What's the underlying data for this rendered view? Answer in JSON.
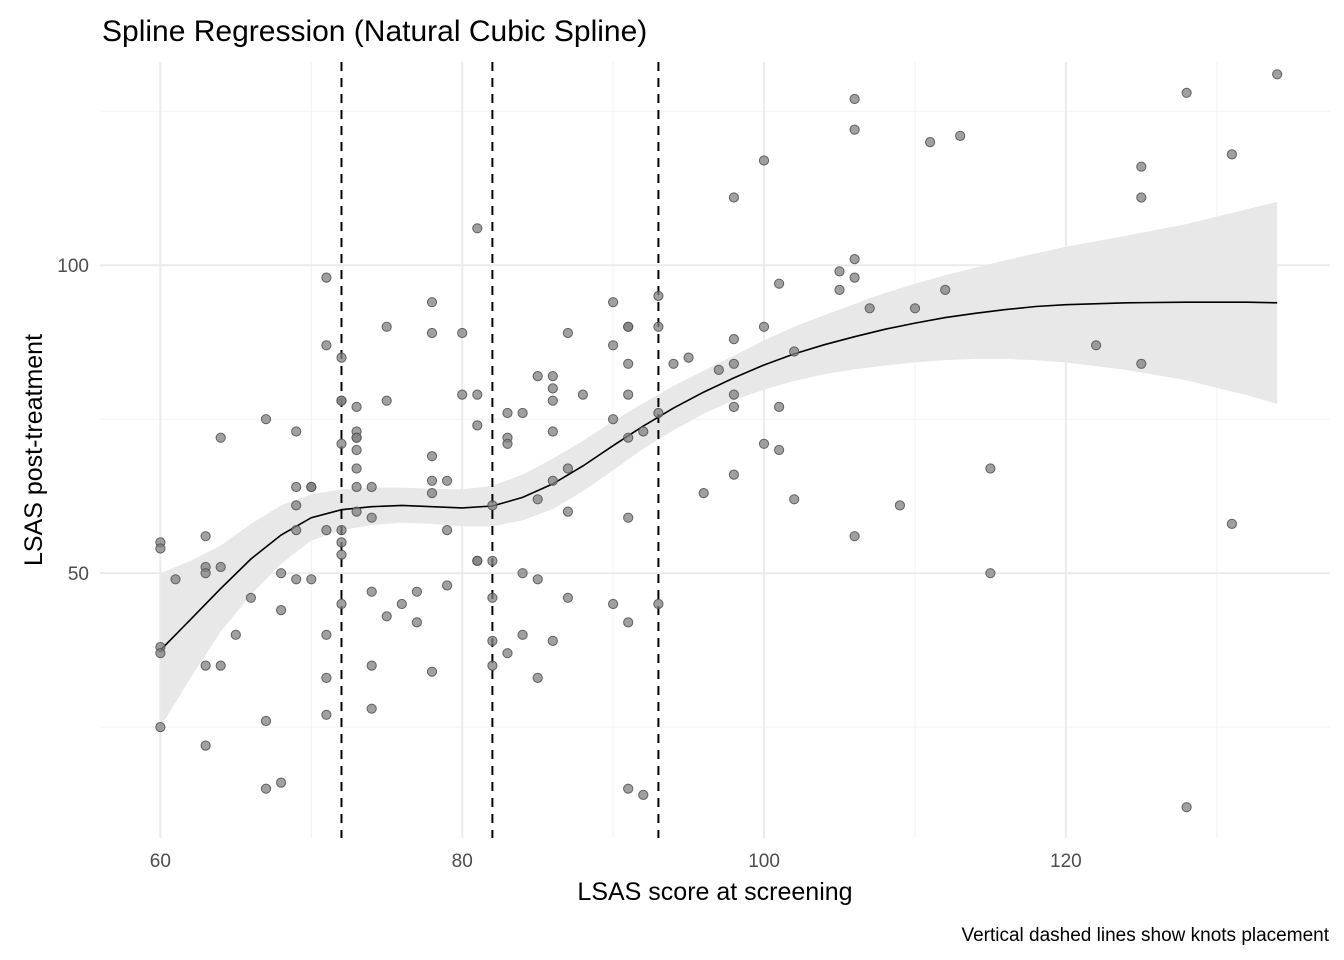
{
  "chart_data": {
    "type": "scatter",
    "title": "Spline Regression (Natural Cubic Spline)",
    "xlabel": "LSAS score at screening",
    "ylabel": "LSAS post-treatment",
    "caption": "Vertical dashed lines show knots placement",
    "xlim": [
      56,
      137.5
    ],
    "ylim": [
      7,
      133
    ],
    "x_ticks": [
      60,
      80,
      100,
      120
    ],
    "x_tick_labels": [
      "60",
      "80",
      "100",
      "120"
    ],
    "x_minor_ticks": [
      70,
      90,
      110,
      130
    ],
    "y_ticks": [
      50,
      100
    ],
    "y_tick_labels": [
      "50",
      "100"
    ],
    "y_minor_ticks": [
      25,
      75,
      125
    ],
    "grid": true,
    "knots": [
      72,
      82,
      93
    ],
    "colors": {
      "point_fill": "#808080",
      "point_stroke": "#4d4d4d",
      "ribbon": "#e8e8e8",
      "line": "#000000",
      "grid_major": "#ebebeb",
      "grid_minor": "#f2f2f2"
    },
    "points": [
      [
        60,
        55
      ],
      [
        60,
        54
      ],
      [
        60,
        38
      ],
      [
        60,
        37
      ],
      [
        60,
        25
      ],
      [
        61,
        49
      ],
      [
        63,
        56
      ],
      [
        63,
        51
      ],
      [
        63,
        50
      ],
      [
        63,
        35
      ],
      [
        63,
        22
      ],
      [
        64,
        72
      ],
      [
        64,
        51
      ],
      [
        64,
        35
      ],
      [
        65,
        40
      ],
      [
        66,
        46
      ],
      [
        67,
        75
      ],
      [
        67,
        26
      ],
      [
        67,
        15
      ],
      [
        68,
        50
      ],
      [
        68,
        44
      ],
      [
        68,
        16
      ],
      [
        69,
        73
      ],
      [
        69,
        64
      ],
      [
        69,
        61
      ],
      [
        69,
        57
      ],
      [
        69,
        49
      ],
      [
        70,
        64
      ],
      [
        70,
        64
      ],
      [
        70,
        49
      ],
      [
        71,
        98
      ],
      [
        71,
        87
      ],
      [
        71,
        57
      ],
      [
        71,
        40
      ],
      [
        71,
        33
      ],
      [
        71,
        27
      ],
      [
        72,
        85
      ],
      [
        72,
        78
      ],
      [
        72,
        78
      ],
      [
        72,
        71
      ],
      [
        72,
        57
      ],
      [
        72,
        55
      ],
      [
        72,
        53
      ],
      [
        72,
        45
      ],
      [
        73,
        77
      ],
      [
        73,
        73
      ],
      [
        73,
        72
      ],
      [
        73,
        72
      ],
      [
        73,
        70
      ],
      [
        73,
        67
      ],
      [
        73,
        64
      ],
      [
        73,
        60
      ],
      [
        74,
        64
      ],
      [
        74,
        59
      ],
      [
        74,
        47
      ],
      [
        74,
        35
      ],
      [
        74,
        28
      ],
      [
        75,
        90
      ],
      [
        75,
        78
      ],
      [
        75,
        43
      ],
      [
        76,
        45
      ],
      [
        77,
        47
      ],
      [
        77,
        42
      ],
      [
        78,
        94
      ],
      [
        78,
        89
      ],
      [
        78,
        69
      ],
      [
        78,
        65
      ],
      [
        78,
        63
      ],
      [
        78,
        34
      ],
      [
        79,
        65
      ],
      [
        79,
        57
      ],
      [
        79,
        48
      ],
      [
        80,
        89
      ],
      [
        80,
        79
      ],
      [
        81,
        106
      ],
      [
        81,
        79
      ],
      [
        81,
        74
      ],
      [
        81,
        52
      ],
      [
        81,
        52
      ],
      [
        82,
        61
      ],
      [
        82,
        52
      ],
      [
        82,
        46
      ],
      [
        82,
        39
      ],
      [
        82,
        35
      ],
      [
        83,
        76
      ],
      [
        83,
        72
      ],
      [
        83,
        71
      ],
      [
        83,
        37
      ],
      [
        84,
        76
      ],
      [
        84,
        50
      ],
      [
        84,
        40
      ],
      [
        85,
        82
      ],
      [
        85,
        62
      ],
      [
        85,
        49
      ],
      [
        85,
        33
      ],
      [
        86,
        82
      ],
      [
        86,
        80
      ],
      [
        86,
        78
      ],
      [
        86,
        73
      ],
      [
        86,
        65
      ],
      [
        86,
        39
      ],
      [
        87,
        89
      ],
      [
        87,
        67
      ],
      [
        87,
        60
      ],
      [
        87,
        46
      ],
      [
        88,
        79
      ],
      [
        90,
        94
      ],
      [
        90,
        87
      ],
      [
        90,
        75
      ],
      [
        90,
        45
      ],
      [
        91,
        90
      ],
      [
        91,
        90
      ],
      [
        91,
        84
      ],
      [
        91,
        79
      ],
      [
        91,
        72
      ],
      [
        91,
        59
      ],
      [
        91,
        42
      ],
      [
        91,
        15
      ],
      [
        92,
        73
      ],
      [
        92,
        14
      ],
      [
        93,
        95
      ],
      [
        93,
        90
      ],
      [
        93,
        76
      ],
      [
        93,
        45
      ],
      [
        94,
        84
      ],
      [
        95,
        85
      ],
      [
        96,
        63
      ],
      [
        97,
        83
      ],
      [
        98,
        111
      ],
      [
        98,
        88
      ],
      [
        98,
        84
      ],
      [
        98,
        79
      ],
      [
        98,
        77
      ],
      [
        98,
        66
      ],
      [
        100,
        117
      ],
      [
        100,
        90
      ],
      [
        100,
        71
      ],
      [
        101,
        97
      ],
      [
        101,
        77
      ],
      [
        101,
        70
      ],
      [
        102,
        86
      ],
      [
        102,
        62
      ],
      [
        105,
        99
      ],
      [
        105,
        96
      ],
      [
        106,
        127
      ],
      [
        106,
        122
      ],
      [
        106,
        101
      ],
      [
        106,
        98
      ],
      [
        106,
        56
      ],
      [
        107,
        93
      ],
      [
        109,
        61
      ],
      [
        110,
        93
      ],
      [
        111,
        120
      ],
      [
        112,
        96
      ],
      [
        113,
        121
      ],
      [
        115,
        67
      ],
      [
        115,
        50
      ],
      [
        122,
        87
      ],
      [
        125,
        116
      ],
      [
        125,
        111
      ],
      [
        125,
        84
      ],
      [
        128,
        128
      ],
      [
        128,
        12
      ],
      [
        131,
        118
      ],
      [
        131,
        58
      ],
      [
        134,
        131
      ]
    ],
    "fit": {
      "x": [
        60,
        62,
        64,
        66,
        68,
        70,
        72,
        74,
        76,
        78,
        80,
        82,
        84,
        86,
        88,
        90,
        92,
        94,
        96,
        98,
        100,
        102,
        104,
        106,
        108,
        110,
        112,
        114,
        116,
        118,
        120,
        124,
        128,
        132,
        134
      ],
      "y": [
        37.5,
        42.5,
        47.5,
        52.3,
        56.2,
        59.0,
        60.3,
        60.8,
        61.0,
        60.8,
        60.6,
        60.9,
        62.3,
        64.5,
        67.4,
        70.7,
        73.9,
        76.8,
        79.4,
        81.7,
        83.8,
        85.6,
        87.1,
        88.4,
        89.6,
        90.6,
        91.5,
        92.2,
        92.8,
        93.3,
        93.6,
        93.9,
        94.0,
        94.0,
        93.9
      ],
      "lower": [
        25.0,
        33.0,
        40.5,
        46.5,
        51.5,
        55.3,
        57.0,
        57.8,
        58.2,
        58.0,
        57.6,
        57.6,
        58.6,
        60.4,
        63.3,
        66.7,
        70.2,
        73.2,
        75.9,
        78.1,
        79.8,
        81.2,
        82.3,
        83.1,
        83.7,
        84.2,
        84.6,
        84.8,
        84.8,
        84.6,
        84.2,
        83.0,
        81.3,
        78.9,
        77.5
      ],
      "upper": [
        50.0,
        52.0,
        54.5,
        58.0,
        61.0,
        62.8,
        63.6,
        63.9,
        63.9,
        63.7,
        63.6,
        64.2,
        66.0,
        68.6,
        71.5,
        74.7,
        77.6,
        80.4,
        82.9,
        85.3,
        87.8,
        90.0,
        91.9,
        93.7,
        95.5,
        97.0,
        98.4,
        99.6,
        100.8,
        101.9,
        103.0,
        104.8,
        106.7,
        109.1,
        110.3
      ]
    }
  }
}
